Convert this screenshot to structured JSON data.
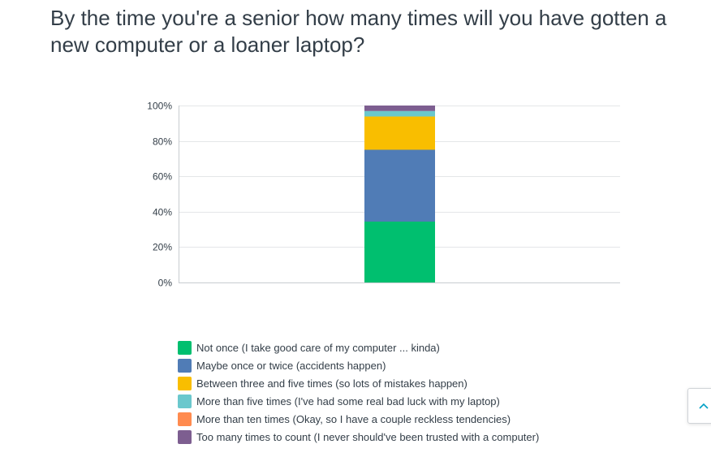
{
  "question": {
    "title": "By the time you're a senior how many times will you have gotten a new computer or a loaner laptop?"
  },
  "chart_data": {
    "type": "bar",
    "stacked": true,
    "categories": [
      ""
    ],
    "ylim": [
      0,
      100
    ],
    "yticks": [
      "0%",
      "20%",
      "40%",
      "60%",
      "80%",
      "100%"
    ],
    "grid": true,
    "legend_position": "bottom",
    "series": [
      {
        "name": "Not once (I take good care of my computer ... kinda)",
        "values": [
          34.4
        ],
        "color": "#00bf6f"
      },
      {
        "name": "Maybe once or twice (accidents happen)",
        "values": [
          40.6
        ],
        "color": "#507cb6"
      },
      {
        "name": "Between three and five times (so lots of mistakes happen)",
        "values": [
          18.8
        ],
        "color": "#f9be00"
      },
      {
        "name": "More than five times (I've had some real bad luck with my laptop)",
        "values": [
          3.1
        ],
        "color": "#6bc8cd"
      },
      {
        "name": "More than ten times (Okay, so I have a couple reckless tendencies)",
        "values": [
          0
        ],
        "color": "#ff8b4f"
      },
      {
        "name": "Too many times to count (I never should've been trusted with a computer)",
        "values": [
          3.1
        ],
        "color": "#7d5e90"
      }
    ]
  },
  "scroll_top": {
    "icon": "chevron-up-icon"
  }
}
